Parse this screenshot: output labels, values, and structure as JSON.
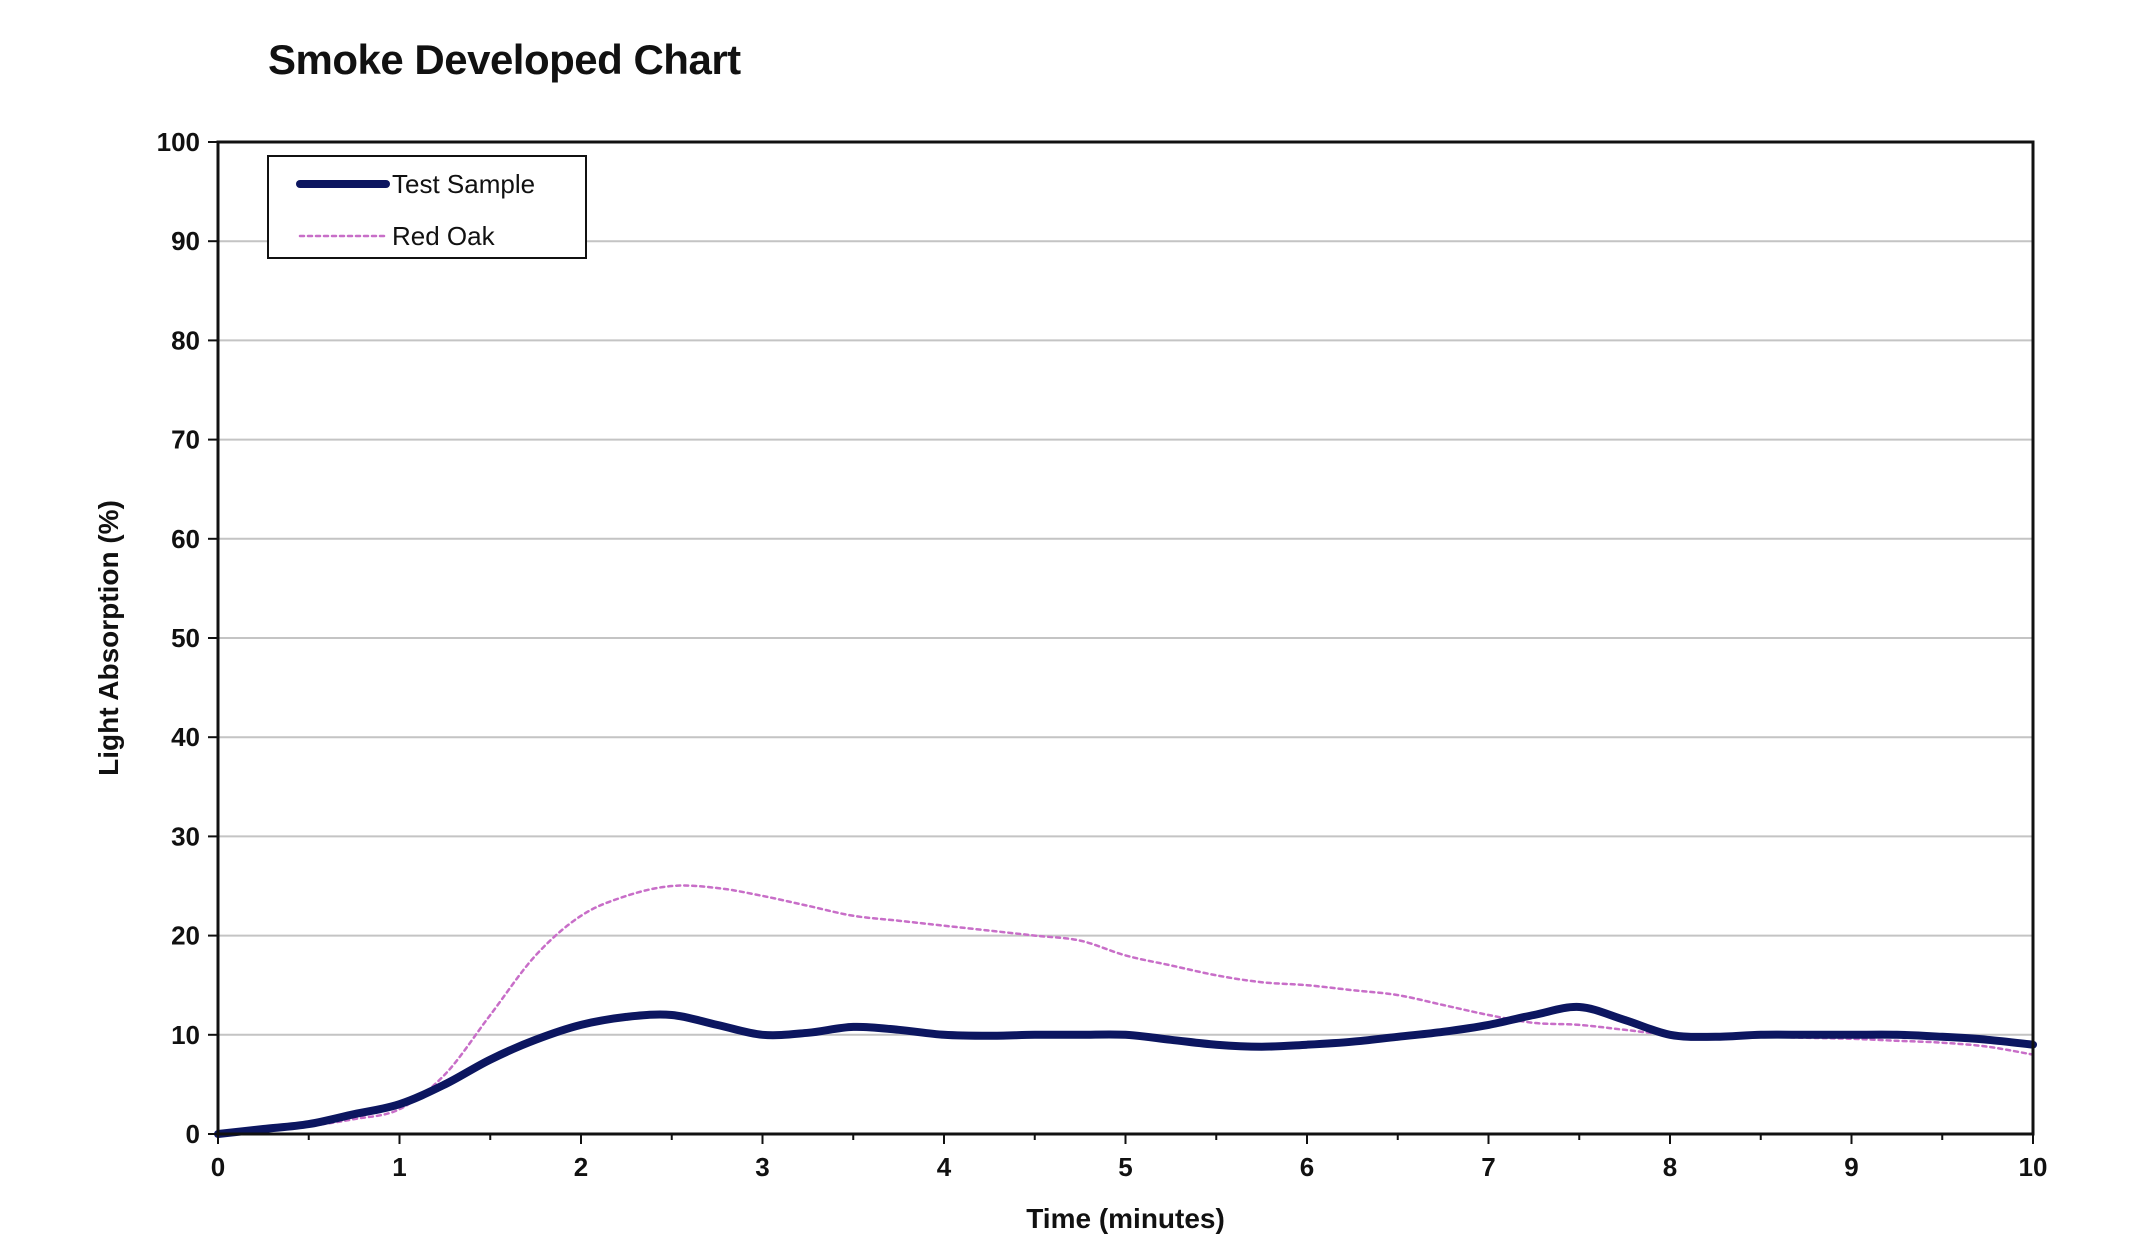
{
  "chart_data": {
    "type": "line",
    "title": "Smoke Developed Chart",
    "xlabel": "Time (minutes)",
    "ylabel": "Light Absorption  (%)",
    "xlim": [
      0,
      10
    ],
    "ylim": [
      0,
      100
    ],
    "x_ticks": [
      0,
      1,
      2,
      3,
      4,
      5,
      6,
      7,
      8,
      9,
      10
    ],
    "y_ticks": [
      0,
      10,
      20,
      30,
      40,
      50,
      60,
      70,
      80,
      90,
      100
    ],
    "grid": "horizontal",
    "legend_position": "top-left",
    "series": [
      {
        "name": "Test Sample",
        "color": "#0c1660",
        "style": "solid-thick",
        "x": [
          0,
          0.25,
          0.5,
          0.75,
          1,
          1.25,
          1.5,
          1.75,
          2,
          2.25,
          2.5,
          2.75,
          3,
          3.25,
          3.5,
          3.75,
          4,
          4.25,
          4.5,
          4.75,
          5,
          5.25,
          5.5,
          5.75,
          6,
          6.25,
          6.5,
          6.75,
          7,
          7.25,
          7.5,
          7.75,
          8,
          8.25,
          8.5,
          8.75,
          9,
          9.25,
          9.5,
          9.75,
          10
        ],
        "y": [
          0,
          0.5,
          1,
          2,
          3,
          5,
          7.5,
          9.5,
          11,
          11.8,
          12,
          11,
          10,
          10.2,
          10.8,
          10.5,
          10,
          9.9,
          10,
          10,
          10,
          9.5,
          9,
          8.8,
          9,
          9.3,
          9.8,
          10.3,
          11,
          12,
          12.8,
          11.5,
          10,
          9.8,
          10,
          10,
          10,
          10,
          9.8,
          9.5,
          9
        ]
      },
      {
        "name": "Red Oak",
        "color": "#c86ec8",
        "style": "dotted",
        "x": [
          0,
          0.25,
          0.5,
          0.75,
          1,
          1.25,
          1.5,
          1.75,
          2,
          2.25,
          2.5,
          2.75,
          3,
          3.25,
          3.5,
          3.75,
          4,
          4.25,
          4.5,
          4.75,
          5,
          5.25,
          5.5,
          5.75,
          6,
          6.25,
          6.5,
          6.75,
          7,
          7.25,
          7.5,
          7.75,
          8,
          8.25,
          8.5,
          8.75,
          9,
          9.25,
          9.5,
          9.75,
          10
        ],
        "y": [
          0,
          0.3,
          0.8,
          1.5,
          2.5,
          6,
          12,
          18,
          22,
          24,
          25,
          24.8,
          24,
          23,
          22,
          21.5,
          21,
          20.5,
          20,
          19.5,
          18,
          17,
          16,
          15.3,
          15,
          14.5,
          14,
          13,
          12,
          11.2,
          11,
          10.5,
          10,
          9.8,
          9.8,
          9.7,
          9.6,
          9.4,
          9.2,
          8.8,
          8
        ]
      }
    ]
  }
}
